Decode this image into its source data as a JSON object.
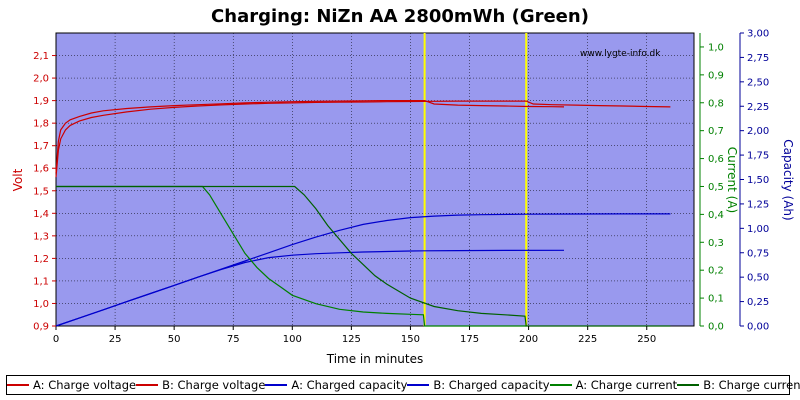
{
  "title": "Charging: NiZn AA 2800mWh (Green)",
  "watermark": "www.lygte-info.dk",
  "chart_data": {
    "type": "line",
    "title": "Charging: NiZn AA 2800mWh (Green)",
    "xlabel": "Time in minutes",
    "xlim": [
      0,
      270
    ],
    "xticks": [
      0,
      25,
      50,
      75,
      100,
      125,
      150,
      175,
      200,
      225,
      250
    ],
    "y_left": {
      "label": "Volt",
      "lim": [
        0.9,
        2.2
      ],
      "ticks": [
        0.9,
        1.0,
        1.1,
        1.2,
        1.3,
        1.4,
        1.5,
        1.6,
        1.7,
        1.8,
        1.9,
        2.0,
        2.1
      ],
      "tick_labels": [
        "0,9",
        "1,0",
        "1,1",
        "1,2",
        "1,3",
        "1,4",
        "1,5",
        "1,6",
        "1,7",
        "1,8",
        "1,9",
        "2,0",
        "2,1"
      ],
      "color": "#cc0000"
    },
    "y_right1": {
      "label": "Current (A)",
      "lim": [
        0,
        1.05
      ],
      "ticks": [
        0,
        0.1,
        0.2,
        0.3,
        0.4,
        0.5,
        0.6,
        0.7,
        0.8,
        0.9,
        1.0
      ],
      "tick_labels": [
        "0,0",
        "0,1",
        "0,2",
        "0,3",
        "0,4",
        "0,5",
        "0,6",
        "0,7",
        "0,8",
        "0,9",
        "1,0"
      ],
      "color": "#008000"
    },
    "y_right2": {
      "label": "Capacity (Ah)",
      "lim": [
        0,
        3.0
      ],
      "ticks": [
        0,
        0.25,
        0.5,
        0.75,
        1.0,
        1.25,
        1.5,
        1.75,
        2.0,
        2.25,
        2.5,
        2.75,
        3.0
      ],
      "tick_labels": [
        "0,00",
        "0,25",
        "0,50",
        "0,75",
        "1,00",
        "1,25",
        "1,50",
        "1,75",
        "2,00",
        "2,25",
        "2,50",
        "2,75",
        "3,00"
      ],
      "color": "#000099"
    },
    "grid": true,
    "vlines": [
      {
        "x": 156,
        "color": "#ffff00"
      },
      {
        "x": 199,
        "color": "#ffff00"
      }
    ],
    "series": [
      {
        "name": "A: Charge voltage",
        "axis": "left",
        "color": "#cc0000",
        "x": [
          0,
          1,
          2,
          4,
          6,
          10,
          15,
          20,
          30,
          40,
          50,
          60,
          70,
          80,
          90,
          100,
          110,
          120,
          130,
          140,
          150,
          156,
          160,
          170,
          180,
          190,
          200,
          210,
          215
        ],
        "y": [
          1.58,
          1.72,
          1.77,
          1.8,
          1.815,
          1.83,
          1.845,
          1.855,
          1.865,
          1.872,
          1.878,
          1.882,
          1.886,
          1.89,
          1.893,
          1.895,
          1.897,
          1.898,
          1.899,
          1.9,
          1.9,
          1.9,
          1.885,
          1.88,
          1.878,
          1.876,
          1.874,
          1.873,
          1.872
        ]
      },
      {
        "name": "B: Charge voltage",
        "axis": "left",
        "color": "#cc0000",
        "x": [
          0,
          1,
          2,
          4,
          6,
          10,
          15,
          20,
          30,
          40,
          50,
          60,
          70,
          80,
          90,
          100,
          110,
          120,
          130,
          140,
          150,
          160,
          170,
          180,
          190,
          199,
          202,
          210,
          220,
          230,
          240,
          250,
          260
        ],
        "y": [
          1.56,
          1.68,
          1.73,
          1.77,
          1.79,
          1.81,
          1.825,
          1.835,
          1.85,
          1.862,
          1.87,
          1.876,
          1.881,
          1.885,
          1.888,
          1.89,
          1.892,
          1.893,
          1.894,
          1.895,
          1.896,
          1.897,
          1.898,
          1.898,
          1.898,
          1.898,
          1.885,
          1.882,
          1.88,
          1.878,
          1.876,
          1.874,
          1.872
        ]
      },
      {
        "name": "A: Charged capacity",
        "axis": "right2",
        "color": "#0000cc",
        "x": [
          0,
          10,
          20,
          30,
          40,
          50,
          60,
          70,
          80,
          90,
          100,
          110,
          120,
          130,
          140,
          150,
          156,
          170,
          190,
          215
        ],
        "y": [
          0,
          0.083,
          0.166,
          0.25,
          0.333,
          0.416,
          0.5,
          0.58,
          0.65,
          0.7,
          0.725,
          0.74,
          0.75,
          0.758,
          0.763,
          0.768,
          0.77,
          0.772,
          0.774,
          0.775
        ]
      },
      {
        "name": "B: Charged capacity",
        "axis": "right2",
        "color": "#0000cc",
        "x": [
          0,
          10,
          20,
          30,
          40,
          50,
          60,
          70,
          80,
          90,
          100,
          110,
          120,
          130,
          140,
          150,
          160,
          170,
          180,
          199,
          220,
          240,
          260
        ],
        "y": [
          0,
          0.083,
          0.166,
          0.25,
          0.333,
          0.416,
          0.5,
          0.583,
          0.666,
          0.75,
          0.833,
          0.91,
          0.98,
          1.04,
          1.08,
          1.11,
          1.125,
          1.135,
          1.14,
          1.145,
          1.147,
          1.148,
          1.148
        ]
      },
      {
        "name": "A: Charge current",
        "axis": "right1",
        "color": "#008000",
        "x": [
          0,
          62,
          65,
          70,
          75,
          80,
          85,
          90,
          95,
          100,
          110,
          120,
          130,
          140,
          150,
          155.5,
          156,
          199
        ],
        "y": [
          0.5,
          0.5,
          0.47,
          0.4,
          0.33,
          0.26,
          0.21,
          0.17,
          0.14,
          0.11,
          0.08,
          0.06,
          0.05,
          0.045,
          0.042,
          0.04,
          0.0,
          0.0
        ]
      },
      {
        "name": "B: Charge current",
        "axis": "right1",
        "color": "#006000",
        "x": [
          0,
          101,
          105,
          110,
          115,
          120,
          125,
          130,
          135,
          140,
          150,
          160,
          170,
          180,
          190,
          198.5,
          199,
          260
        ],
        "y": [
          0.5,
          0.5,
          0.47,
          0.42,
          0.36,
          0.31,
          0.26,
          0.22,
          0.18,
          0.15,
          0.1,
          0.07,
          0.055,
          0.045,
          0.04,
          0.035,
          0.0,
          0.0
        ]
      }
    ]
  },
  "legend": [
    {
      "label": "A: Charge voltage",
      "color": "#cc0000"
    },
    {
      "label": "B: Charge voltage",
      "color": "#cc0000"
    },
    {
      "label": "A: Charged capacity",
      "color": "#0000cc"
    },
    {
      "label": "B: Charged capacity",
      "color": "#0000cc"
    },
    {
      "label": "A: Charge current",
      "color": "#008000"
    },
    {
      "label": "B: Charge current",
      "color": "#006000"
    }
  ]
}
